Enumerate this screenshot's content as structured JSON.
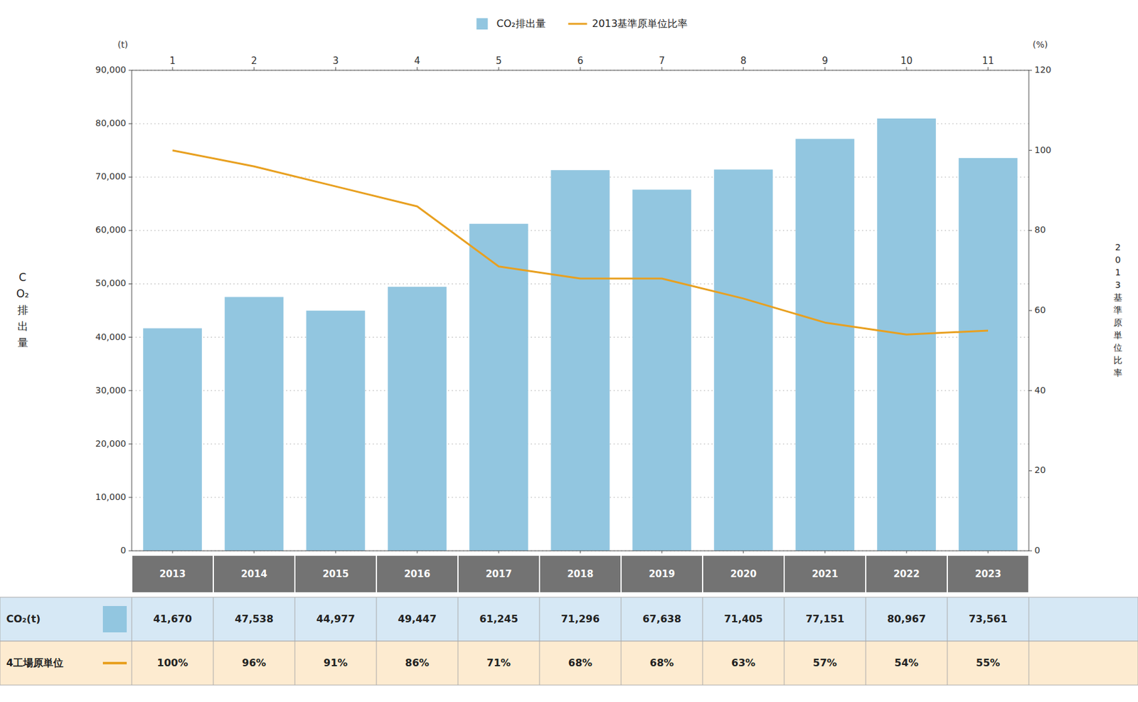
{
  "chart_data": {
    "type": "bar",
    "categories": [
      "2013",
      "2014",
      "2015",
      "2016",
      "2017",
      "2018",
      "2019",
      "2020",
      "2021",
      "2022",
      "2023"
    ],
    "x2_categories": [
      1,
      2,
      3,
      4,
      5,
      6,
      7,
      8,
      9,
      10,
      11
    ],
    "series": [
      {
        "name": "CO₂排出量",
        "type": "bar",
        "color": "#92C6E0",
        "values": [
          41670,
          47538,
          44977,
          49447,
          61245,
          71296,
          67638,
          71405,
          77151,
          80967,
          73561
        ],
        "value_labels": [
          "41,670",
          "47,538",
          "44,977",
          "49,447",
          "61,245",
          "71,296",
          "67,638",
          "71,405",
          "77,151",
          "80,967",
          "73,561"
        ],
        "table_label": "CO₂(t)",
        "table_color": "#D6E8F5"
      },
      {
        "name": "2013基準原単位比率",
        "type": "line",
        "axis": "y2",
        "color": "#E8A020",
        "values": [
          100,
          96,
          91,
          86,
          71,
          68,
          68,
          63,
          57,
          54,
          55
        ],
        "value_labels": [
          "100%",
          "96%",
          "91%",
          "86%",
          "71%",
          "68%",
          "68%",
          "63%",
          "57%",
          "54%",
          "55%"
        ],
        "table_label": "4工場原単位",
        "table_color": "#FDEBD0"
      }
    ],
    "ylim": [
      0,
      90000
    ],
    "yticks": [
      0,
      {
        "value": 10000,
        "label": "10,000"
      },
      {
        "value": 20000,
        "label": "20,000"
      },
      {
        "value": 30000,
        "label": "30,000"
      },
      {
        "value": 40000,
        "label": "40,000"
      },
      {
        "value": 50000,
        "label": "50,000"
      },
      {
        "value": 60000,
        "label": "60,000"
      },
      {
        "value": 70000,
        "label": "70,000"
      },
      {
        "value": 80000,
        "label": "80,000"
      },
      {
        "value": 90000,
        "label": "90,000"
      }
    ],
    "y2lim": [
      0,
      120
    ],
    "y2ticks": [
      0,
      20,
      40,
      60,
      80,
      100,
      120
    ],
    "ylabel": "CO₂排出量",
    "y2label": "2013基準原単位比率",
    "ylabel_unit": "(t)",
    "y2label_unit": "(%)",
    "band_color": "#737373",
    "band_text_color": "#FFFFFF",
    "table_border_color": "#AAAAAA",
    "grid": true,
    "legend": "top",
    "data_labels": true
  }
}
